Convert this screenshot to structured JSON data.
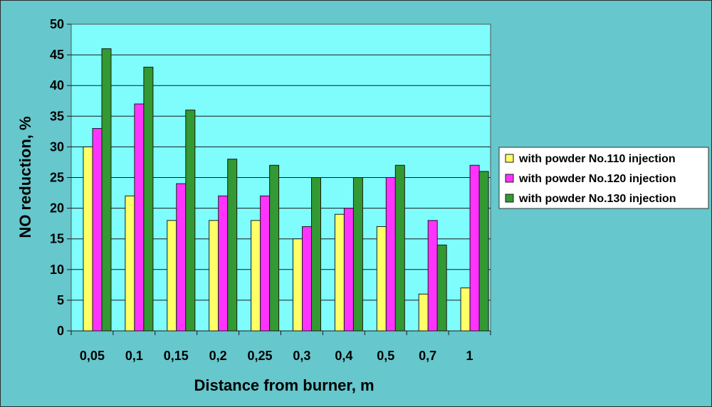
{
  "chart_data": {
    "type": "bar",
    "title": "",
    "xlabel": "Distance from burner, m",
    "ylabel": "NO reduction, %",
    "ylim": [
      0,
      50
    ],
    "yticks": [
      0,
      5,
      10,
      15,
      20,
      25,
      30,
      35,
      40,
      45,
      50
    ],
    "grid": "horizontal",
    "legend_position": "right",
    "categories": [
      "0,05",
      "0,1",
      "0,15",
      "0,2",
      "0,25",
      "0,3",
      "0,4",
      "0,5",
      "0,7",
      "1"
    ],
    "series": [
      {
        "name": "with powder No.110 injection",
        "color": "#ffff66",
        "values": [
          30,
          22,
          18,
          18,
          18,
          15,
          19,
          17,
          6,
          7
        ]
      },
      {
        "name": "with powder No.120 injection",
        "color": "#ff33ff",
        "values": [
          33,
          37,
          24,
          22,
          22,
          17,
          20,
          25,
          18,
          27
        ]
      },
      {
        "name": "with powder No.130 injection",
        "color": "#339933",
        "values": [
          46,
          43,
          36,
          28,
          27,
          25,
          25,
          27,
          14,
          26
        ]
      }
    ],
    "colors": {
      "plot_area": "#7ffdfd",
      "frame_background": "#66c7cc",
      "legend_background": "#ffffff"
    }
  }
}
